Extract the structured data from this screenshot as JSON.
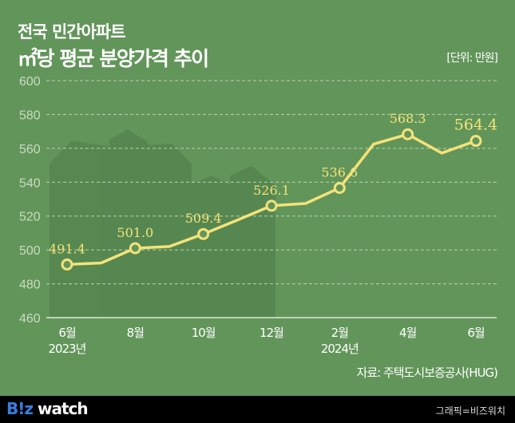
{
  "header": {
    "title_line1": "전국 민간아파트",
    "title_line2": "㎡당 평균 분양가격 추이",
    "unit": "[단위: 만원]"
  },
  "chart_data": {
    "type": "line",
    "title": "전국 민간아파트 ㎡당 평균 분양가격 추이",
    "ylim": [
      460,
      600
    ],
    "yticks": [
      460,
      480,
      500,
      520,
      540,
      560,
      580,
      600
    ],
    "x": [
      "2023-06",
      "2023-07",
      "2023-08",
      "2023-09",
      "2023-10",
      "2023-11",
      "2023-12",
      "2024-01",
      "2024-02",
      "2024-03",
      "2024-04",
      "2024-05",
      "2024-06"
    ],
    "xtick_labels": [
      {
        "month": "6월",
        "year": "2023년"
      },
      {
        "month": "8월"
      },
      {
        "month": "10월"
      },
      {
        "month": "12월"
      },
      {
        "month": "2월",
        "year": "2024년"
      },
      {
        "month": "4월"
      },
      {
        "month": "6월"
      }
    ],
    "series": [
      {
        "values": [
          491.4,
          492.3,
          501.0,
          502.0,
          509.4,
          517.6,
          526.1,
          527.4,
          536.6,
          562.5,
          568.3,
          557.2,
          564.4
        ]
      }
    ],
    "data_labels": [
      "491.4",
      "",
      "501.0",
      "",
      "509.4",
      "",
      "526.1",
      "",
      "536.6",
      "",
      "568.3",
      "",
      "564.4"
    ],
    "grid": true,
    "colors": {
      "line": "#f4e27a",
      "background": "#62955a",
      "grid": "#b9d3b0"
    }
  },
  "source": "자료: 주택도시보증공사(HUG)",
  "footer": {
    "logo": "B!z watch",
    "credit": "그래픽=비즈워치"
  }
}
